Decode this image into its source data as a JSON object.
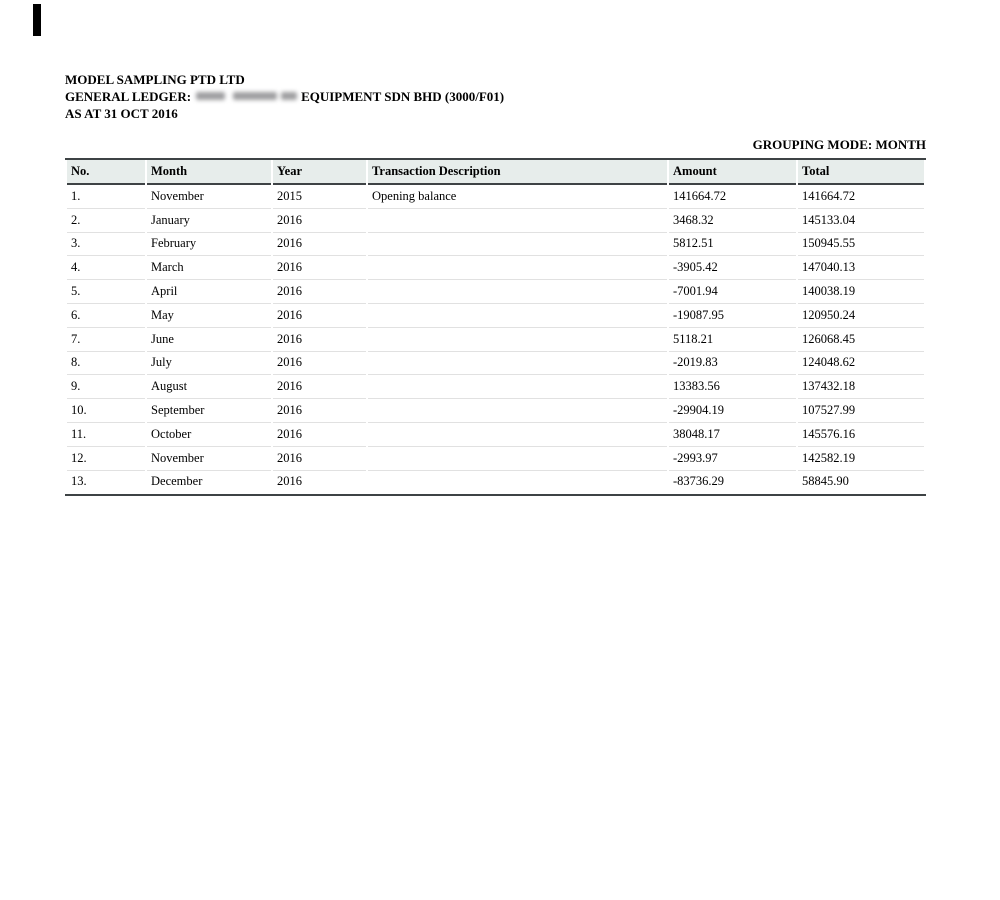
{
  "header": {
    "company": "MODEL SAMPLING PTD LTD",
    "ledger_prefix": "GENERAL LEDGER:",
    "ledger_suffix": "EQUIPMENT SDN BHD (3000/F01)",
    "as_at": "AS AT 31 OCT 2016",
    "grouping_mode": "GROUPING MODE: MONTH"
  },
  "table": {
    "columns": [
      "No.",
      "Month",
      "Year",
      "Transaction Description",
      "Amount",
      "Total"
    ],
    "rows": [
      {
        "no": "1.",
        "month": "November",
        "year": "2015",
        "description": "Opening balance",
        "amount": "141664.72",
        "total": "141664.72"
      },
      {
        "no": "2.",
        "month": "January",
        "year": "2016",
        "description": "",
        "amount": "3468.32",
        "total": "145133.04"
      },
      {
        "no": "3.",
        "month": "February",
        "year": "2016",
        "description": "",
        "amount": "5812.51",
        "total": "150945.55"
      },
      {
        "no": "4.",
        "month": "March",
        "year": "2016",
        "description": "",
        "amount": "-3905.42",
        "total": "147040.13"
      },
      {
        "no": "5.",
        "month": "April",
        "year": "2016",
        "description": "",
        "amount": "-7001.94",
        "total": "140038.19"
      },
      {
        "no": "6.",
        "month": "May",
        "year": "2016",
        "description": "",
        "amount": "-19087.95",
        "total": "120950.24"
      },
      {
        "no": "7.",
        "month": "June",
        "year": "2016",
        "description": "",
        "amount": "5118.21",
        "total": "126068.45"
      },
      {
        "no": "8.",
        "month": "July",
        "year": "2016",
        "description": "",
        "amount": "-2019.83",
        "total": "124048.62"
      },
      {
        "no": "9.",
        "month": "August",
        "year": "2016",
        "description": "",
        "amount": "13383.56",
        "total": "137432.18"
      },
      {
        "no": "10.",
        "month": "September",
        "year": "2016",
        "description": "",
        "amount": "-29904.19",
        "total": "107527.99"
      },
      {
        "no": "11.",
        "month": "October",
        "year": "2016",
        "description": "",
        "amount": "38048.17",
        "total": "145576.16"
      },
      {
        "no": "12.",
        "month": "November",
        "year": "2016",
        "description": "",
        "amount": "-2993.97",
        "total": "142582.19"
      },
      {
        "no": "13.",
        "month": "December",
        "year": "2016",
        "description": "",
        "amount": "-83736.29",
        "total": "58845.90"
      }
    ]
  },
  "colors": {
    "table_header_bg": "#e7edeb",
    "dark_border": "#3e4345",
    "row_separator": "#e1e1e1",
    "text": "#000000",
    "redaction_blob": "#9e9ea0"
  }
}
